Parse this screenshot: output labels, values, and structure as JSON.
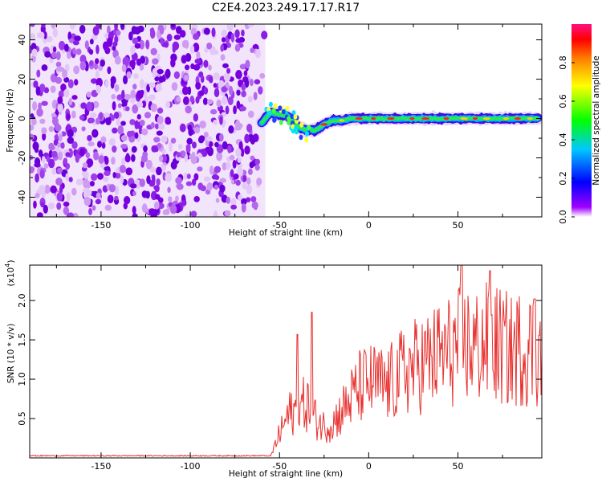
{
  "title": "C2E4.2023.249.17.17.R17",
  "chart_data": [
    {
      "type": "heatmap",
      "xlabel": "Height of straight line (km)",
      "ylabel": "Frequency (Hz)",
      "xlim": [
        -190,
        97
      ],
      "ylim": [
        -50,
        48
      ],
      "xticks": [
        -150,
        -100,
        -50,
        0,
        50
      ],
      "yticks": [
        -40,
        -20,
        0,
        20,
        40
      ],
      "noise_region_x": [
        -190,
        -58
      ],
      "signal_track": {
        "x": [
          -60,
          -55,
          -50,
          -45,
          -40,
          -35,
          -30,
          -25,
          -20,
          -15,
          -10,
          -5,
          0,
          20,
          40,
          60,
          80,
          95
        ],
        "freq": [
          -2,
          3,
          2,
          1,
          -4,
          -6,
          -6,
          -3,
          -1,
          -1,
          0,
          0,
          0,
          0,
          0,
          0,
          0,
          0
        ]
      },
      "colorbar": {
        "label": "Normalized spectral amplitude",
        "range": [
          0.0,
          1.0
        ],
        "ticks": [
          0.0,
          0.2,
          0.4,
          0.6,
          0.8
        ]
      }
    },
    {
      "type": "line",
      "xlabel": "Height of straight line (km)",
      "ylabel": "SNR (10 * v/v)",
      "ylabel_multiplier": "(x10⁴)",
      "xlim": [
        -190,
        97
      ],
      "ylim": [
        0,
        2.45
      ],
      "xticks": [
        -150,
        -100,
        -50,
        0,
        50
      ],
      "yticks": [
        0.5,
        1.0,
        1.5,
        2.0
      ],
      "color": "#e8312f",
      "series": [
        {
          "x": [
            -190,
            -55,
            -50,
            -45,
            -40,
            -35,
            -30,
            -25,
            -20,
            -15,
            -10,
            -5,
            0,
            5,
            10,
            15,
            20,
            25,
            30,
            35,
            40,
            45,
            50,
            55,
            60,
            65,
            70,
            75,
            80,
            85,
            90,
            95
          ],
          "mean": [
            0.02,
            0.02,
            0.3,
            0.55,
            0.6,
            0.7,
            0.5,
            0.4,
            0.45,
            0.6,
            0.75,
            0.9,
            0.95,
            0.95,
            0.9,
            1.0,
            1.1,
            1.15,
            1.2,
            1.25,
            1.3,
            1.35,
            1.4,
            1.45,
            1.4,
            1.45,
            1.45,
            1.4,
            1.35,
            1.4,
            1.4,
            1.35
          ],
          "peaks": [
            {
              "x": -40,
              "y": 1.57
            },
            {
              "x": -32,
              "y": 1.85
            },
            {
              "x": 52,
              "y": 2.45
            },
            {
              "x": 68,
              "y": 2.38
            },
            {
              "x": 93,
              "y": 2.02
            }
          ]
        }
      ]
    }
  ],
  "labels": {
    "colorbar_label": "Normalized spectral amplitude",
    "multiplier_base": "(x10",
    "multiplier_exp": "4",
    "multiplier_close": ")"
  }
}
